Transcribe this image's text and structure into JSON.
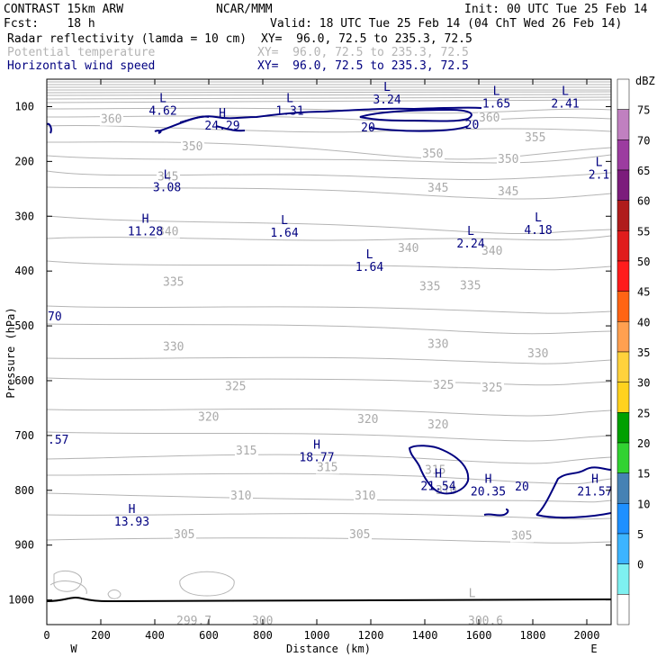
{
  "header": {
    "title": "CONTRAST 15km ARW",
    "center": "NCAR/MMM",
    "init": "Init: 00 UTC Tue 25 Feb 14",
    "fcst": "Fcst:    18 h",
    "valid": "Valid: 18 UTC Tue 25 Feb 14 (04 ChT Wed 26 Feb 14)",
    "fields": [
      {
        "name": "Radar reflectivity (lamda = 10 cm)",
        "xy": "XY=  96.0, 72.5 to 235.3, 72.5",
        "color": "#000000"
      },
      {
        "name": "Potential temperature",
        "xy": "XY=  96.0, 72.5 to 235.3, 72.5",
        "color": "#b4b4b4"
      },
      {
        "name": "Horizontal wind speed",
        "xy": "XY=  96.0, 72.5 to 235.3, 72.5",
        "color": "#000080"
      }
    ]
  },
  "chart_data": {
    "type": "cross-section",
    "xlabel": "Distance (km)",
    "ylabel": "Pressure (hPa)",
    "xlim": [
      0,
      2090
    ],
    "ylim_hpa": [
      50,
      1045
    ],
    "x_ticks": [
      "0",
      "200",
      "400",
      "600",
      "800",
      "1000",
      "1200",
      "1400",
      "1600",
      "1800",
      "2000"
    ],
    "y_ticks": [
      "100",
      "200",
      "300",
      "400",
      "500",
      "600",
      "700",
      "800",
      "900",
      "1000"
    ],
    "x_end_labels": {
      "left": "W",
      "right": "E"
    },
    "potential_temperature_K": [
      {
        "value": "360",
        "km": 250,
        "hpa": 130
      },
      {
        "value": "360",
        "km": 1650,
        "hpa": 127
      },
      {
        "value": "355",
        "km": 1820,
        "hpa": 163
      },
      {
        "value": "350",
        "km": 550,
        "hpa": 180
      },
      {
        "value": "350",
        "km": 1440,
        "hpa": 193
      },
      {
        "value": "350",
        "km": 1720,
        "hpa": 203
      },
      {
        "value": "345",
        "km": 460,
        "hpa": 235
      },
      {
        "value": "345",
        "km": 1460,
        "hpa": 255
      },
      {
        "value": "345",
        "km": 1720,
        "hpa": 262
      },
      {
        "value": "340",
        "km": 460,
        "hpa": 335
      },
      {
        "value": "340",
        "km": 1350,
        "hpa": 365
      },
      {
        "value": "340",
        "km": 1660,
        "hpa": 370
      },
      {
        "value": "335",
        "km": 480,
        "hpa": 427
      },
      {
        "value": "335",
        "km": 1430,
        "hpa": 435
      },
      {
        "value": "335",
        "km": 1580,
        "hpa": 433
      },
      {
        "value": "330",
        "km": 480,
        "hpa": 545
      },
      {
        "value": "330",
        "km": 1460,
        "hpa": 540
      },
      {
        "value": "330",
        "km": 1830,
        "hpa": 557
      },
      {
        "value": "325",
        "km": 710,
        "hpa": 617
      },
      {
        "value": "325",
        "km": 1480,
        "hpa": 615
      },
      {
        "value": "325",
        "km": 1660,
        "hpa": 620
      },
      {
        "value": "320",
        "km": 610,
        "hpa": 673
      },
      {
        "value": "320",
        "km": 1200,
        "hpa": 677
      },
      {
        "value": "320",
        "km": 1460,
        "hpa": 687
      },
      {
        "value": "315",
        "km": 750,
        "hpa": 735
      },
      {
        "value": "315",
        "km": 1050,
        "hpa": 765
      },
      {
        "value": "315",
        "km": 1450,
        "hpa": 770
      },
      {
        "value": "310",
        "km": 730,
        "hpa": 817
      },
      {
        "value": "310",
        "km": 1190,
        "hpa": 817
      },
      {
        "value": "310",
        "km": 1490,
        "hpa": 807
      },
      {
        "value": "305",
        "km": 520,
        "hpa": 887
      },
      {
        "value": "305",
        "km": 1170,
        "hpa": 887
      },
      {
        "value": "305",
        "km": 1770,
        "hpa": 890
      },
      {
        "value": "299.7",
        "km": 530,
        "hpa": 1045
      },
      {
        "value": "300",
        "km": 810,
        "hpa": 1045
      },
      {
        "value": "300.6",
        "km": 1610,
        "hpa": 1045
      }
    ],
    "theta_extrema": [
      {
        "type": "L",
        "km": 1575,
        "hpa": 1000
      }
    ],
    "wind_speed_ms": {
      "contour_values": [
        "20",
        "20",
        "20"
      ],
      "partial_labels": [
        "70",
        ".57"
      ],
      "extrema": [
        {
          "type": "L",
          "value": "4.62",
          "km": 430,
          "hpa": 95
        },
        {
          "type": "H",
          "value": "24.29",
          "km": 650,
          "hpa": 122
        },
        {
          "type": "L",
          "value": "1.31",
          "km": 900,
          "hpa": 95
        },
        {
          "type": "L",
          "value": "3.24",
          "km": 1260,
          "hpa": 75
        },
        {
          "type": "L",
          "value": "1.65",
          "km": 1665,
          "hpa": 82
        },
        {
          "type": "L",
          "value": "2.41",
          "km": 1920,
          "hpa": 82
        },
        {
          "type": "L",
          "value": "2.1",
          "km": 2045,
          "hpa": 212
        },
        {
          "type": "L",
          "value": "3.08",
          "km": 445,
          "hpa": 235
        },
        {
          "type": "H",
          "value": "11.28",
          "km": 365,
          "hpa": 315
        },
        {
          "type": "L",
          "value": "1.64",
          "km": 880,
          "hpa": 318
        },
        {
          "type": "L",
          "value": "2.24",
          "km": 1570,
          "hpa": 337
        },
        {
          "type": "L",
          "value": "4.18",
          "km": 1820,
          "hpa": 313
        },
        {
          "type": "L",
          "value": "1.64",
          "km": 1195,
          "hpa": 380
        },
        {
          "type": "H",
          "value": "18.77",
          "km": 1000,
          "hpa": 727
        },
        {
          "type": "H",
          "value": "21.54",
          "km": 1450,
          "hpa": 780
        },
        {
          "type": "H",
          "value": "20.35",
          "km": 1635,
          "hpa": 790
        },
        {
          "type": "H",
          "value": "21.57",
          "km": 2030,
          "hpa": 790
        },
        {
          "type": "H",
          "value": "13.93",
          "km": 315,
          "hpa": 845
        }
      ]
    },
    "reflectivity_colorbar": {
      "unit": "dBZ",
      "levels": [
        "75",
        "70",
        "65",
        "60",
        "55",
        "50",
        "45",
        "40",
        "35",
        "30",
        "25",
        "20",
        "15",
        "10",
        "5",
        "0"
      ],
      "colors": [
        "#ffffff",
        "#c080c0",
        "#9c3ca0",
        "#7c1c7c",
        "#b01c1c",
        "#e01c1c",
        "#ff1c1c",
        "#ff6414",
        "#ffa050",
        "#ffd23c",
        "#ffd21e",
        "#00a000",
        "#32d232",
        "#4682b4",
        "#1e90ff",
        "#3cb4ff",
        "#7ef0f0",
        "#ffffff"
      ]
    }
  }
}
